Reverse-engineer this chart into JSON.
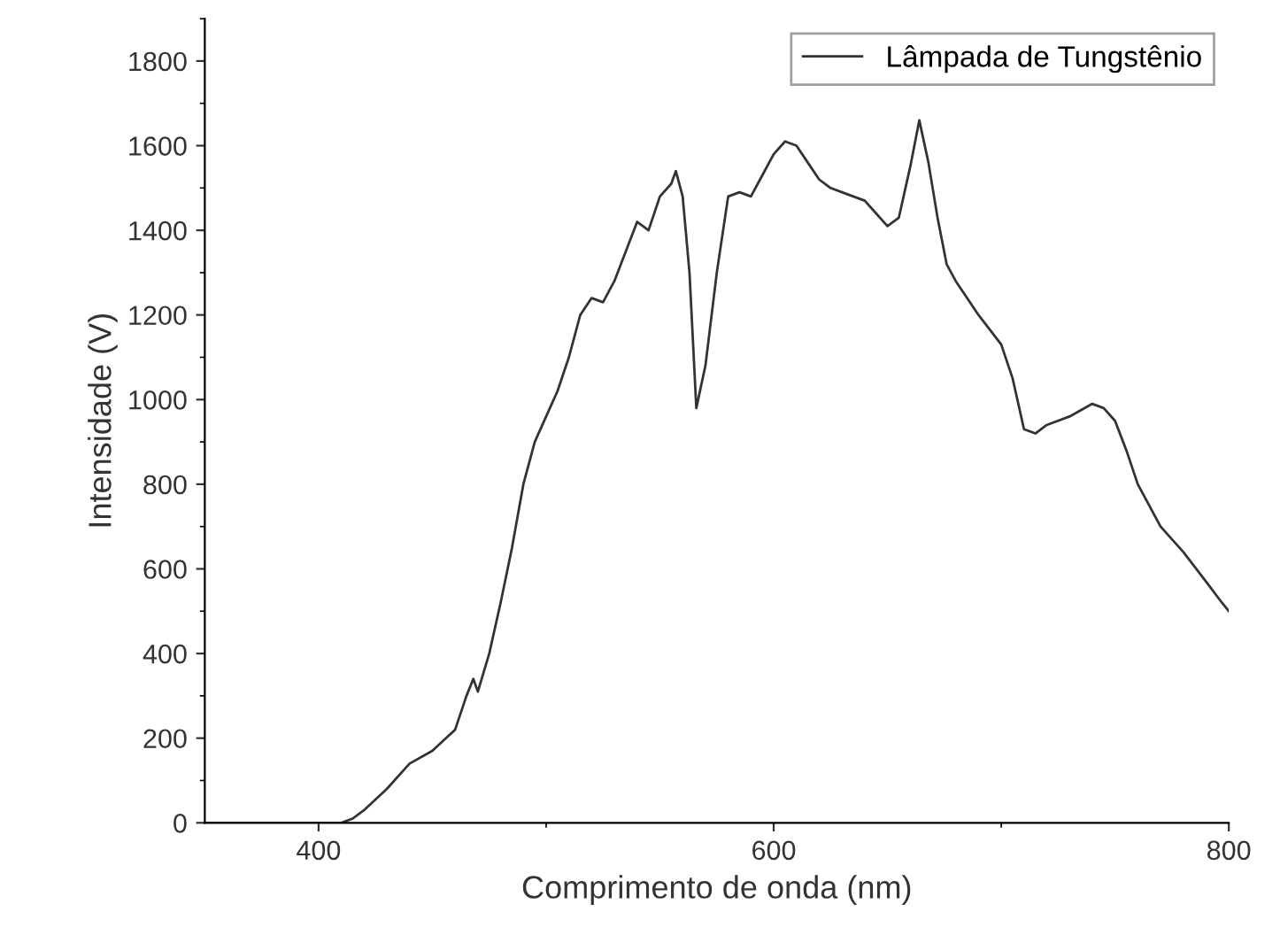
{
  "chart_data": {
    "type": "line",
    "xlabel": "Comprimento de onda (nm)",
    "ylabel": "Intensidade (V)",
    "xlim": [
      350,
      800
    ],
    "xticks": [
      400,
      600,
      800
    ],
    "ylim": [
      0,
      1900
    ],
    "yticks": [
      0,
      200,
      400,
      600,
      800,
      1000,
      1200,
      1400,
      1600,
      1800
    ],
    "grid": false,
    "legend": "top right",
    "marker": "none",
    "line_style": "solid",
    "series": [
      {
        "name": "Lâmpada de Tungstênio",
        "color": "#333333",
        "x": [
          350,
          380,
          410,
          415,
          420,
          430,
          440,
          450,
          460,
          465,
          468,
          470,
          475,
          480,
          485,
          490,
          495,
          500,
          505,
          510,
          515,
          520,
          525,
          530,
          535,
          540,
          545,
          550,
          555,
          557,
          560,
          563,
          566,
          570,
          575,
          580,
          585,
          590,
          595,
          600,
          605,
          610,
          615,
          620,
          625,
          630,
          640,
          645,
          650,
          655,
          660,
          664,
          668,
          672,
          676,
          680,
          690,
          700,
          705,
          710,
          715,
          720,
          730,
          740,
          745,
          750,
          755,
          760,
          770,
          780,
          790,
          797,
          800
        ],
        "values": [
          0,
          0,
          0,
          10,
          30,
          80,
          140,
          170,
          220,
          300,
          340,
          310,
          400,
          520,
          650,
          800,
          900,
          960,
          1020,
          1100,
          1200,
          1240,
          1230,
          1280,
          1350,
          1420,
          1400,
          1480,
          1510,
          1540,
          1480,
          1300,
          980,
          1080,
          1300,
          1480,
          1490,
          1480,
          1530,
          1580,
          1610,
          1600,
          1560,
          1520,
          1500,
          1490,
          1470,
          1440,
          1410,
          1430,
          1550,
          1660,
          1560,
          1430,
          1320,
          1280,
          1200,
          1130,
          1050,
          930,
          920,
          940,
          960,
          990,
          980,
          950,
          880,
          800,
          700,
          640,
          570,
          520,
          500
        ]
      }
    ]
  }
}
